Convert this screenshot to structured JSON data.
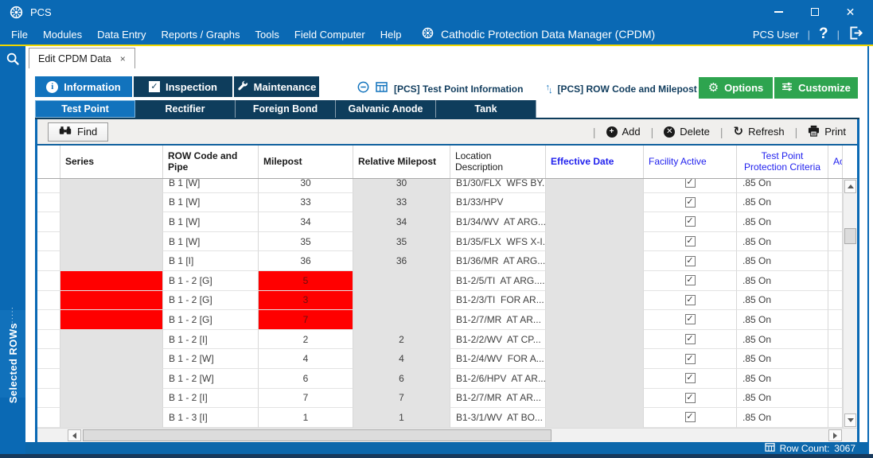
{
  "window": {
    "title": "PCS"
  },
  "menu": {
    "items": [
      "File",
      "Modules",
      "Data Entry",
      "Reports / Graphs",
      "Tools",
      "Field Computer",
      "Help"
    ],
    "app_title": "Cathodic Protection Data Manager (CPDM)",
    "user": "PCS User",
    "help_label": "?"
  },
  "doc_tab": {
    "label": "Edit CPDM Data",
    "close": "×"
  },
  "sidebar": {
    "panel_label": "Selected ROWs"
  },
  "main_tabs": [
    {
      "label": "Information",
      "icon": "info",
      "active": true
    },
    {
      "label": "Inspection",
      "icon": "check",
      "active": false
    },
    {
      "label": "Maintenance",
      "icon": "wrench",
      "active": false
    }
  ],
  "context_bar": {
    "grid_name": "[PCS] Test Point Information",
    "sort_name": "[PCS] ROW Code and Milepost"
  },
  "action_buttons": {
    "options": "Options",
    "customize": "Customize"
  },
  "facility_tabs": [
    {
      "label": "Test Point",
      "active": true
    },
    {
      "label": "Rectifier",
      "active": false
    },
    {
      "label": "Foreign Bond",
      "active": false
    },
    {
      "label": "Galvanic Anode",
      "active": false
    },
    {
      "label": "Tank",
      "active": false
    }
  ],
  "toolbar": {
    "find": "Find",
    "add": "Add",
    "delete": "Delete",
    "refresh": "Refresh",
    "print": "Print"
  },
  "table": {
    "columns": [
      "",
      "Series",
      "ROW Code and Pipe",
      "Milepost",
      "Relative Milepost",
      "Location Description",
      "Effective Date",
      "Facility Active",
      "Test Point Protection Criteria",
      "Ac"
    ],
    "rows": [
      {
        "series": "",
        "row_code": "B 1 [W]",
        "milepost": "30",
        "relative_milepost": "30",
        "location": "B1/30/FLX  WFS BY...",
        "effective_date": "",
        "facility_active": true,
        "criteria": ".85 On",
        "highlight": false
      },
      {
        "series": "",
        "row_code": "B 1 [W]",
        "milepost": "33",
        "relative_milepost": "33",
        "location": "B1/33/HPV",
        "effective_date": "",
        "facility_active": true,
        "criteria": ".85 On",
        "highlight": false
      },
      {
        "series": "",
        "row_code": "B 1 [W]",
        "milepost": "34",
        "relative_milepost": "34",
        "location": "B1/34/WV  AT ARG....",
        "effective_date": "",
        "facility_active": true,
        "criteria": ".85 On",
        "highlight": false
      },
      {
        "series": "",
        "row_code": "B 1 [W]",
        "milepost": "35",
        "relative_milepost": "35",
        "location": "B1/35/FLX  WFS X-I...",
        "effective_date": "",
        "facility_active": true,
        "criteria": ".85 On",
        "highlight": false
      },
      {
        "series": "",
        "row_code": "B 1 [I]",
        "milepost": "36",
        "relative_milepost": "36",
        "location": "B1/36/MR  AT ARG....",
        "effective_date": "",
        "facility_active": true,
        "criteria": ".85 On",
        "highlight": false
      },
      {
        "series": "",
        "row_code": "B 1 - 2 [G]",
        "milepost": "5",
        "relative_milepost": "",
        "location": "B1-2/5/TI  AT ARG....",
        "effective_date": "",
        "facility_active": true,
        "criteria": ".85 On",
        "highlight": true
      },
      {
        "series": "",
        "row_code": "B 1 - 2 [G]",
        "milepost": "3",
        "relative_milepost": "",
        "location": "B1-2/3/TI  FOR AR...",
        "effective_date": "",
        "facility_active": true,
        "criteria": ".85 On",
        "highlight": true
      },
      {
        "series": "",
        "row_code": "B 1 - 2 [G]",
        "milepost": "7",
        "relative_milepost": "",
        "location": "B1-2/7/MR  AT AR...",
        "effective_date": "",
        "facility_active": true,
        "criteria": ".85 On",
        "highlight": true
      },
      {
        "series": "",
        "row_code": "B 1 - 2 [I]",
        "milepost": "2",
        "relative_milepost": "2",
        "location": "B1-2/2/WV  AT CP...",
        "effective_date": "",
        "facility_active": true,
        "criteria": ".85 On",
        "highlight": false
      },
      {
        "series": "",
        "row_code": "B 1 - 2 [W]",
        "milepost": "4",
        "relative_milepost": "4",
        "location": "B1-2/4/WV  FOR A...",
        "effective_date": "",
        "facility_active": true,
        "criteria": ".85 On",
        "highlight": false
      },
      {
        "series": "",
        "row_code": "B 1 - 2 [W]",
        "milepost": "6",
        "relative_milepost": "6",
        "location": "B1-2/6/HPV  AT AR...",
        "effective_date": "",
        "facility_active": true,
        "criteria": ".85 On",
        "highlight": false
      },
      {
        "series": "",
        "row_code": "B 1 - 2 [I]",
        "milepost": "7",
        "relative_milepost": "7",
        "location": "B1-2/7/MR  AT AR...",
        "effective_date": "",
        "facility_active": true,
        "criteria": ".85 On",
        "highlight": false
      },
      {
        "series": "",
        "row_code": "B 1 - 3 [I]",
        "milepost": "1",
        "relative_milepost": "1",
        "location": "B1-3/1/WV  AT BO...",
        "effective_date": "",
        "facility_active": true,
        "criteria": ".85 On",
        "highlight": false
      }
    ]
  },
  "status_bar": {
    "row_count_label": "Row Count:",
    "row_count": "3067"
  },
  "colors": {
    "titlebar_blue": "#0A69B4",
    "active_tab_blue": "#1273BD",
    "navy_tab": "#0E3D5C",
    "button_green": "#2EA44F",
    "highlight_red": "#FF0000",
    "header_link_blue": "#2222EE",
    "status_blue": "#0C67AB",
    "divider_yellow": "#EFD700"
  }
}
